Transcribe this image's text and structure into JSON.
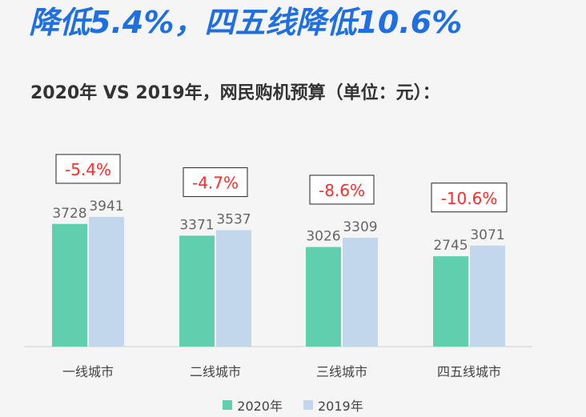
{
  "headline": "降低5.4%，四五线降低10.6%",
  "subtitle": "2020年 VS 2019年，网民购机预算（单位：元）：",
  "colors": {
    "series2020": "#5fcfae",
    "series2019": "#c2d7ec",
    "accent": "#1f6fe0",
    "change": "#ff2a2a"
  },
  "chart_data": {
    "type": "bar",
    "categories": [
      "一线城市",
      "二线城市",
      "三线城市",
      "四五线城市"
    ],
    "series": [
      {
        "name": "2020年",
        "values": [
          3728,
          3371,
          3026,
          2745
        ]
      },
      {
        "name": "2019年",
        "values": [
          3941,
          3537,
          3309,
          3071
        ]
      }
    ],
    "value_labels": [
      [
        "3728",
        "3371",
        "3026",
        "2745"
      ],
      [
        "3941",
        "3537",
        "3309",
        "3071"
      ]
    ],
    "annotations": [
      "-5.4%",
      "-4.7%",
      "-8.6%",
      "-10.6%"
    ],
    "legend_position": "bottom-center",
    "grid": false
  }
}
